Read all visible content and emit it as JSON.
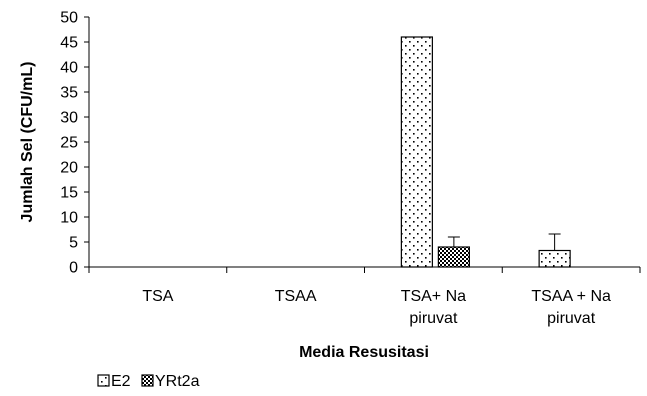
{
  "chart_data": {
    "type": "bar",
    "xlabel": "Media Resusitasi",
    "ylabel": "Jumlah Sel (CFU/mL)",
    "ylim": [
      0,
      50
    ],
    "yticks": [
      0,
      5,
      10,
      15,
      20,
      25,
      30,
      35,
      40,
      45,
      50
    ],
    "categories": [
      [
        "TSA"
      ],
      [
        "TSAA"
      ],
      [
        "TSA+ Na",
        "piruvat"
      ],
      [
        "TSAA + Na",
        "piruvat"
      ]
    ],
    "series": [
      {
        "name": "E2",
        "values": [
          0,
          0,
          46,
          3.3
        ],
        "error": [
          0,
          0,
          0,
          3.3
        ],
        "pattern": "dots",
        "color": "#000000"
      },
      {
        "name": "YRt2a",
        "values": [
          0,
          0,
          4,
          0
        ],
        "error": [
          0,
          0,
          2,
          0
        ],
        "pattern": "checker",
        "color": "#000000"
      }
    ],
    "legend_position": "bottom-left",
    "grid": false
  }
}
